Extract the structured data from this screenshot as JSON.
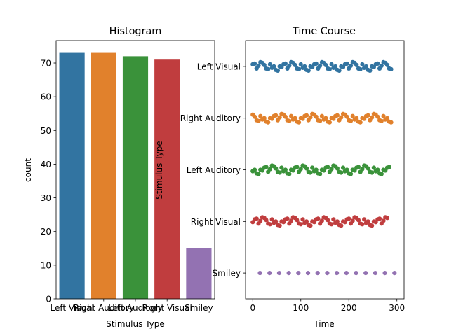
{
  "chart_data": [
    {
      "type": "bar",
      "title": "Histogram",
      "xlabel": "Stimulus Type",
      "ylabel": "count",
      "categories": [
        "Left Visual",
        "Right Auditory",
        "Left Auditory",
        "Right Visual",
        "Smiley"
      ],
      "values": [
        73,
        73,
        72,
        71,
        15
      ],
      "colors": [
        "#3274a1",
        "#e1812c",
        "#3a923a",
        "#c03d3e",
        "#9372b2"
      ],
      "ylim": [
        0,
        76.65
      ],
      "yticks": [
        0,
        10,
        20,
        30,
        40,
        50,
        60,
        70
      ],
      "grid": false
    },
    {
      "type": "scatter",
      "title": "Time Course",
      "xlabel": "Time",
      "ylabel": "Stimulus Type",
      "categories": [
        "Left Visual",
        "Right Auditory",
        "Left Auditory",
        "Right Visual",
        "Smiley"
      ],
      "colors": [
        "#3274a1",
        "#e1812c",
        "#3a923a",
        "#c03d3e",
        "#9372b2"
      ],
      "xlim": [
        -15,
        315
      ],
      "xticks": [
        0,
        100,
        200,
        300
      ],
      "grid": false,
      "series": [
        {
          "category": "Left Visual",
          "x": [
            0,
            4,
            8,
            12,
            16,
            20,
            24,
            28,
            32,
            36,
            40,
            44,
            48,
            52,
            56,
            60,
            64,
            68,
            72,
            76,
            80,
            84,
            88,
            92,
            96,
            100,
            104,
            108,
            112,
            116,
            120,
            124,
            128,
            132,
            136,
            140,
            144,
            148,
            152,
            156,
            160,
            164,
            168,
            172,
            176,
            180,
            184,
            188,
            192,
            196,
            200,
            204,
            208,
            212,
            216,
            220,
            224,
            228,
            232,
            236,
            240,
            244,
            248,
            252,
            256,
            260,
            264,
            268,
            272,
            276,
            280,
            284,
            288
          ]
        },
        {
          "category": "Right Auditory",
          "x": [
            0,
            4,
            8,
            12,
            16,
            20,
            24,
            28,
            32,
            36,
            40,
            44,
            48,
            52,
            56,
            60,
            64,
            68,
            72,
            76,
            80,
            84,
            88,
            92,
            96,
            100,
            104,
            108,
            112,
            116,
            120,
            124,
            128,
            132,
            136,
            140,
            144,
            148,
            152,
            156,
            160,
            164,
            168,
            172,
            176,
            180,
            184,
            188,
            192,
            196,
            200,
            204,
            208,
            212,
            216,
            220,
            224,
            228,
            232,
            236,
            240,
            244,
            248,
            252,
            256,
            260,
            264,
            268,
            272,
            276,
            280,
            284,
            288
          ]
        },
        {
          "category": "Left Auditory",
          "x": [
            0,
            4,
            8,
            12,
            16,
            20,
            24,
            28,
            32,
            36,
            40,
            44,
            48,
            52,
            56,
            60,
            64,
            68,
            72,
            76,
            80,
            84,
            88,
            92,
            96,
            100,
            104,
            108,
            112,
            116,
            120,
            124,
            128,
            132,
            136,
            140,
            144,
            148,
            152,
            156,
            160,
            164,
            168,
            172,
            176,
            180,
            184,
            188,
            192,
            196,
            200,
            204,
            208,
            212,
            216,
            220,
            224,
            228,
            232,
            236,
            240,
            244,
            248,
            252,
            256,
            260,
            264,
            268,
            272,
            276,
            280,
            284
          ]
        },
        {
          "category": "Right Visual",
          "x": [
            0,
            4,
            8,
            12,
            16,
            20,
            24,
            28,
            32,
            36,
            40,
            44,
            48,
            52,
            56,
            60,
            64,
            68,
            72,
            76,
            80,
            84,
            88,
            92,
            96,
            100,
            104,
            108,
            112,
            116,
            120,
            124,
            128,
            132,
            136,
            140,
            144,
            148,
            152,
            156,
            160,
            164,
            168,
            172,
            176,
            180,
            184,
            188,
            192,
            196,
            200,
            204,
            208,
            212,
            216,
            220,
            224,
            228,
            232,
            236,
            240,
            244,
            248,
            252,
            256,
            260,
            264,
            268,
            272,
            276,
            280
          ]
        },
        {
          "category": "Smiley",
          "x": [
            15,
            35,
            55,
            75,
            95,
            115,
            135,
            155,
            175,
            195,
            215,
            235,
            255,
            275,
            295
          ]
        }
      ]
    }
  ]
}
